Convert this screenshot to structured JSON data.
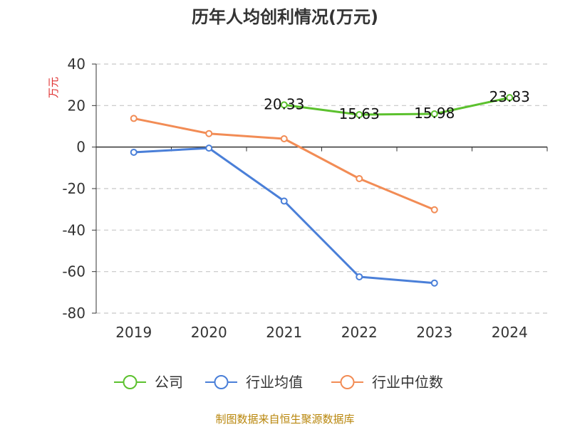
{
  "title": "历年人均创利情况(万元)",
  "source": "制图数据来自恒生聚源数据库",
  "chart_data": {
    "type": "line",
    "ylabel": "万元",
    "xlabel": "",
    "ylim": [
      -80,
      40
    ],
    "yticks": [
      40,
      20,
      0,
      -20,
      -40,
      -60,
      -80
    ],
    "categories": [
      "2019",
      "2020",
      "2021",
      "2022",
      "2023",
      "2024"
    ],
    "grid": true,
    "legend_position": "bottom",
    "series": [
      {
        "name": "公司",
        "color": "#5cc12e",
        "values": [
          null,
          null,
          20.33,
          15.63,
          15.98,
          23.83
        ],
        "labels": [
          null,
          null,
          "20.33",
          "15.63",
          "15.98",
          "23.83"
        ]
      },
      {
        "name": "行业均值",
        "color": "#4a7fd8",
        "values": [
          -2.5,
          -0.5,
          -26,
          -62.5,
          -65.5,
          null
        ]
      },
      {
        "name": "行业中位数",
        "color": "#f28c55",
        "values": [
          13.8,
          6.5,
          4.0,
          -15.2,
          -30.2,
          null
        ]
      }
    ]
  }
}
